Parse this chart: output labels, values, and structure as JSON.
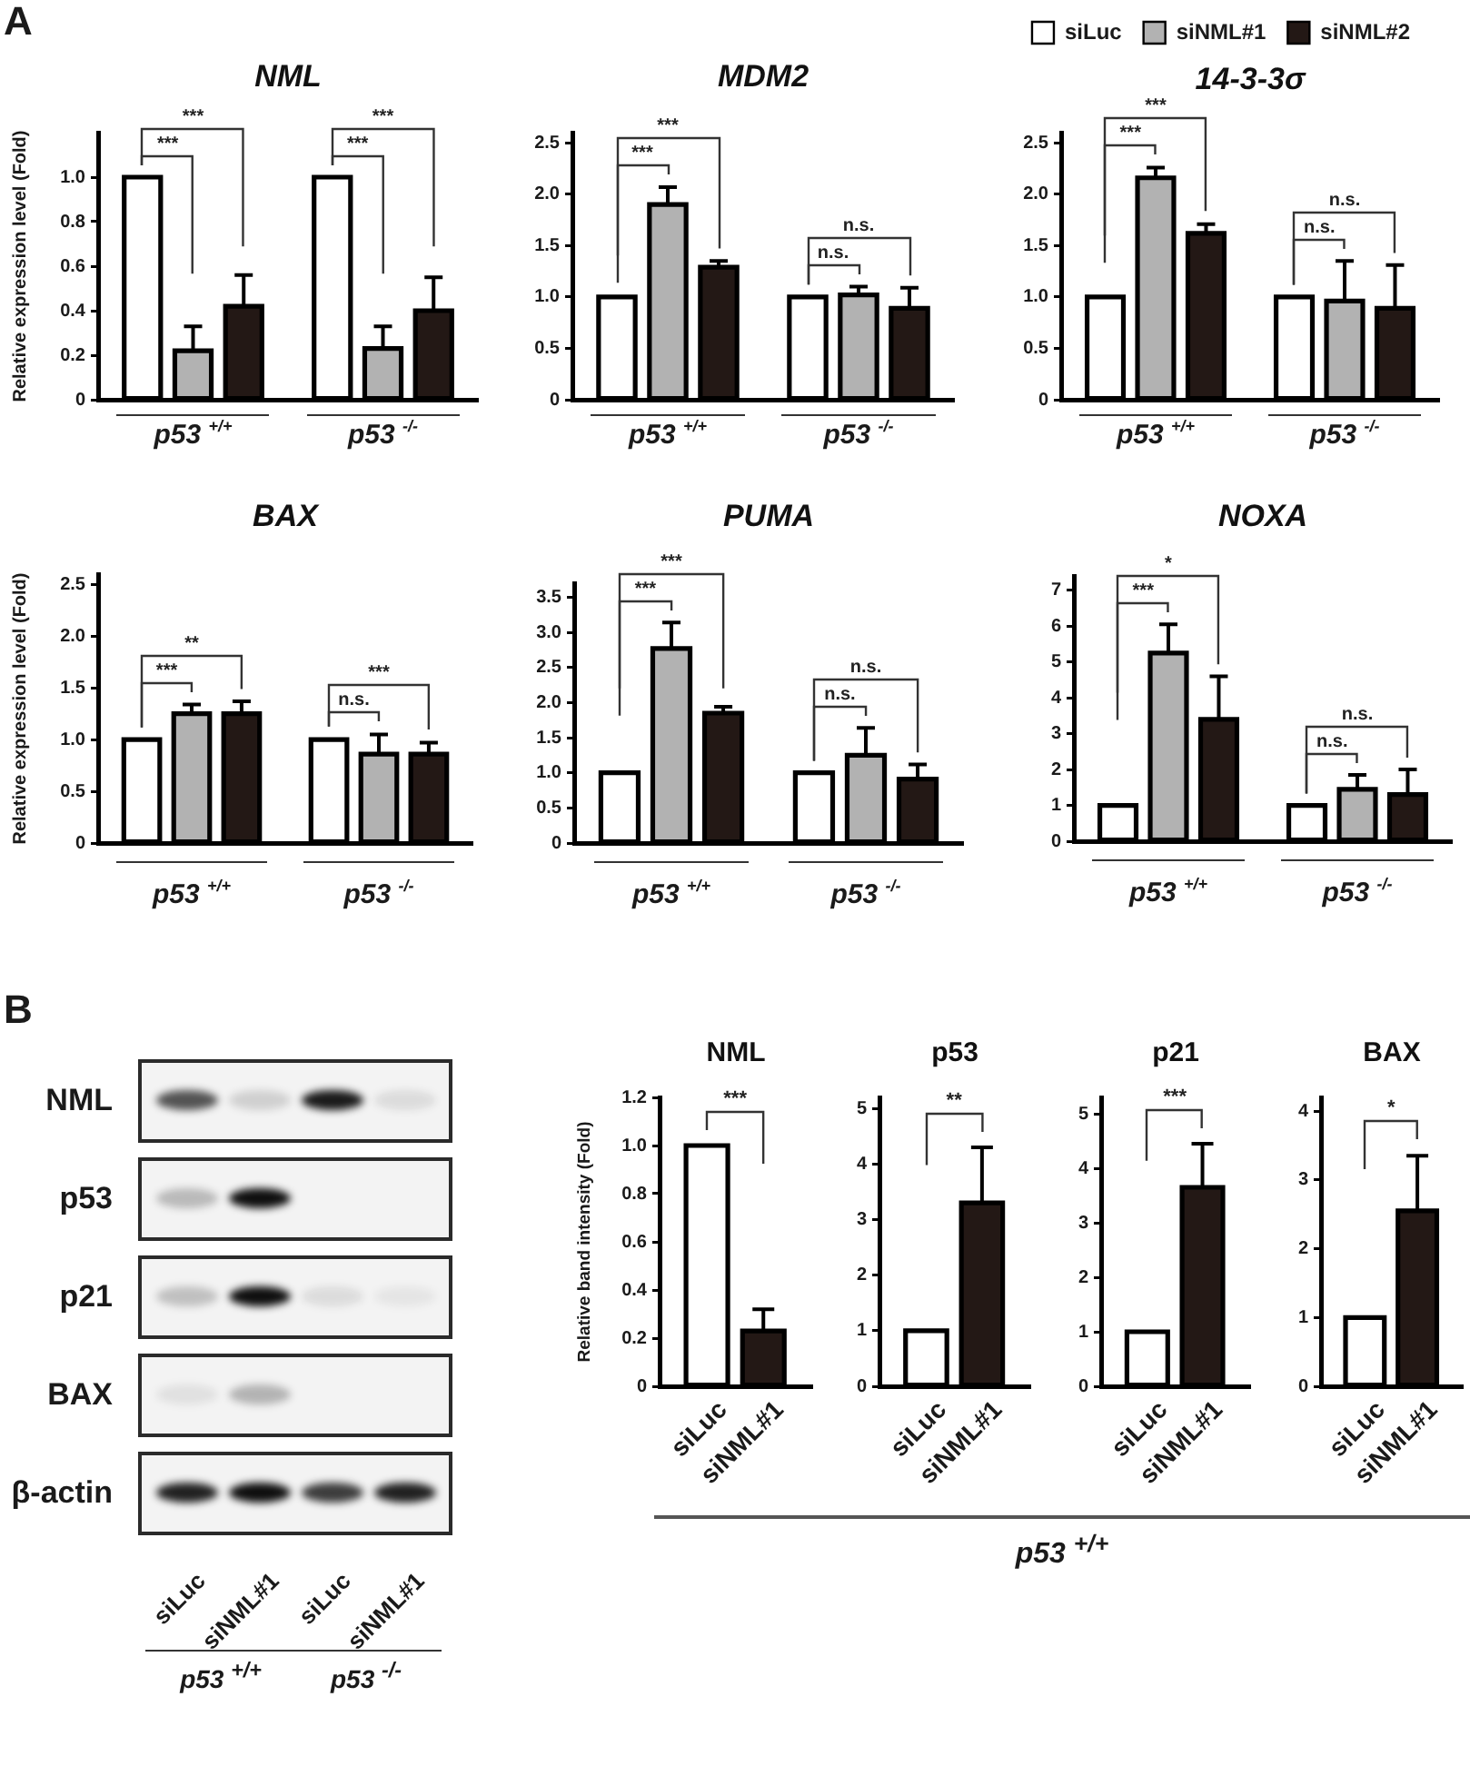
{
  "chart_data": [
    {
      "type": "bar",
      "title": "NML",
      "ylabel": "Relative expression level (Fold)",
      "categories": [
        "p53 $^{+/+}$",
        "p53 $^{-/-}$"
      ],
      "series": [
        {
          "color": "#ffffff",
          "values": [
            1,
            1
          ]
        },
        {
          "color": "#b2b2b2",
          "values": [
            0.22,
            0.23
          ],
          "errors": [
            [
              0.22,
              0.33
            ],
            [
              0.23,
              0.33
            ]
          ]
        },
        {
          "color": "#231815",
          "values": [
            0.42,
            0.4
          ],
          "errors": [
            [
              0.42,
              0.56
            ],
            [
              0.4,
              0.55
            ]
          ]
        }
      ],
      "ylim": [
        0,
        1.2
      ],
      "yticks": [
        0,
        0.2,
        0.4,
        0.6,
        0.8,
        {
          "value": 1,
          "label": "1.0"
        }
      ],
      "annotations": [
        "***",
        "***",
        "***",
        "***",
        "A"
      ]
    },
    {
      "type": "bar",
      "title": "MDM2",
      "categories": [
        "p53 $^{+/+}$",
        "p53 $^{-/-}$"
      ],
      "series": [
        {
          "color": "#ffffff",
          "values": [
            1,
            1
          ]
        },
        {
          "color": "#b2b2b2",
          "values": [
            1.9,
            1.02
          ],
          "errors": [
            [
              1.9,
              2.07
            ],
            [
              1.02,
              1.1
            ]
          ]
        },
        {
          "color": "#231815",
          "values": [
            1.29,
            0.89
          ],
          "errors": [
            [
              1.29,
              1.35
            ],
            [
              0.89,
              1.09
            ]
          ]
        }
      ],
      "ylim": [
        0,
        2.6
      ],
      "yticks": [
        0,
        0.5,
        {
          "value": 1,
          "label": "1.0"
        },
        1.5,
        {
          "value": 2,
          "label": "2.0"
        },
        2.5
      ],
      "annotations": [
        "***",
        "***",
        "n.s.",
        "n.s."
      ]
    },
    {
      "type": "bar",
      "title": "14-3-3σ",
      "legend": "top",
      "categories": [
        "p53 $^{+/+}$",
        "p53 $^{-/-}$"
      ],
      "series": [
        {
          "name": "siLuc",
          "color": "#ffffff",
          "values": [
            1,
            1
          ]
        },
        {
          "name": "siNML#1",
          "color": "#b2b2b2",
          "values": [
            2.16,
            0.96
          ],
          "errors": [
            [
              2.16,
              2.26
            ],
            [
              0.96,
              1.35
            ]
          ]
        },
        {
          "name": "siNML#2",
          "color": "#231815",
          "values": [
            1.62,
            0.89
          ],
          "errors": [
            [
              1.62,
              1.71
            ],
            [
              0.89,
              1.31
            ]
          ]
        }
      ],
      "ylim": [
        0,
        2.6
      ],
      "yticks": [
        0,
        0.5,
        {
          "value": 1,
          "label": "1.0"
        },
        1.5,
        {
          "value": 2,
          "label": "2.0"
        },
        2.5
      ],
      "annotations": [
        "***",
        "***",
        "n.s.",
        "n.s."
      ]
    },
    {
      "type": "bar",
      "title": "BAX",
      "ylabel": "Relative expression level (Fold)",
      "categories": [
        "p53 $^{+/+}$",
        "p53 $^{-/-}$"
      ],
      "series": [
        {
          "color": "#ffffff",
          "values": [
            1,
            1
          ]
        },
        {
          "color": "#b2b2b2",
          "values": [
            1.25,
            0.86
          ],
          "errors": [
            [
              1.25,
              1.34
            ],
            [
              0.86,
              1.05
            ]
          ]
        },
        {
          "color": "#231815",
          "values": [
            1.25,
            0.86
          ],
          "errors": [
            [
              1.25,
              1.37
            ],
            [
              0.86,
              0.97
            ]
          ]
        }
      ],
      "ylim": [
        0,
        2.6
      ],
      "yticks": [
        0,
        0.5,
        {
          "value": 1,
          "label": "1.0"
        },
        1.5,
        {
          "value": 2,
          "label": "2.0"
        },
        2.5
      ],
      "annotations": [
        "***",
        "**",
        "n.s.",
        "***"
      ]
    },
    {
      "type": "bar",
      "title": "PUMA",
      "categories": [
        "p53 $^{+/+}$",
        "p53 $^{-/-}$"
      ],
      "series": [
        {
          "color": "#ffffff",
          "values": [
            1,
            1
          ]
        },
        {
          "color": "#b2b2b2",
          "values": [
            2.77,
            1.25
          ],
          "errors": [
            [
              2.77,
              3.14
            ],
            [
              1.25,
              1.64
            ]
          ]
        },
        {
          "color": "#231815",
          "values": [
            1.85,
            0.91
          ],
          "errors": [
            [
              1.85,
              1.94
            ],
            [
              0.91,
              1.12
            ]
          ]
        }
      ],
      "ylim": [
        0,
        3.7
      ],
      "yticks": [
        0,
        0.5,
        {
          "value": 1,
          "label": "1.0"
        },
        1.5,
        {
          "value": 2,
          "label": "2.0"
        },
        2.5,
        {
          "value": 3,
          "label": "3.0"
        },
        3.5
      ],
      "annotations": [
        "***",
        "***",
        "n.s.",
        "n.s."
      ]
    },
    {
      "type": "bar",
      "title": "NOXA",
      "categories": [
        "p53 $^{+/+}$",
        "p53 $^{-/-}$"
      ],
      "series": [
        {
          "color": "#ffffff",
          "values": [
            1,
            1
          ]
        },
        {
          "color": "#b2b2b2",
          "values": [
            5.25,
            1.45
          ],
          "errors": [
            [
              5.25,
              6.05
            ],
            [
              1.45,
              1.85
            ]
          ]
        },
        {
          "color": "#231815",
          "values": [
            3.4,
            1.3
          ],
          "errors": [
            [
              3.4,
              4.6
            ],
            [
              1.3,
              2
            ]
          ]
        }
      ],
      "ylim": [
        0,
        7.4
      ],
      "yticks": [
        0,
        1,
        2,
        3,
        4,
        5,
        6,
        7
      ],
      "annotations": [
        "***",
        "*",
        "n.s.",
        "n.s."
      ]
    },
    {
      "type": "other",
      "categories": [
        "siLuc",
        "siNML#1",
        "siLuc",
        "siNML#1"
      ],
      "y_categories": [
        "NML",
        "p53",
        "p21",
        "BAX",
        "β-actin"
      ],
      "annotations": [
        "p53 $^{+/+}$",
        "p53 $^{-/-}$",
        "B"
      ]
    },
    {
      "type": "bar",
      "title": "NML",
      "ylabel": "Relative band intensity (Fold)",
      "categories": [
        "siLuc",
        "siNML#1"
      ],
      "values": [
        1,
        0.23
      ],
      "colors": [
        "#ffffff",
        "#231815"
      ],
      "errors": [
        null,
        [
          0.23,
          0.32
        ]
      ],
      "ylim": [
        0,
        1.2
      ],
      "yticks": [
        0,
        0.2,
        0.4,
        0.6,
        0.8,
        {
          "value": 1,
          "label": "1.0"
        },
        1.2
      ],
      "annotations": [
        "***",
        "p53 $^{+/+}$"
      ]
    },
    {
      "type": "bar",
      "title": "p53",
      "categories": [
        "siLuc",
        "siNML#1"
      ],
      "values": [
        1,
        3.3
      ],
      "colors": [
        "#ffffff",
        "#231815"
      ],
      "errors": [
        null,
        [
          3.3,
          4.3
        ]
      ],
      "ylim": [
        0,
        5.2
      ],
      "yticks": [
        0,
        1,
        2,
        3,
        4,
        5
      ],
      "annotations": [
        "**"
      ]
    },
    {
      "type": "bar",
      "title": "p21",
      "categories": [
        "siLuc",
        "siNML#1"
      ],
      "values": [
        1,
        3.65
      ],
      "colors": [
        "#ffffff",
        "#231815"
      ],
      "errors": [
        null,
        [
          3.65,
          4.45
        ]
      ],
      "ylim": [
        0,
        5.3
      ],
      "yticks": [
        0,
        1,
        2,
        3,
        4,
        5
      ],
      "annotations": [
        "***"
      ]
    },
    {
      "type": "bar",
      "title": "BAX",
      "categories": [
        "siLuc",
        "siNML#1"
      ],
      "values": [
        1,
        2.55
      ],
      "colors": [
        "#ffffff",
        "#231815"
      ],
      "errors": [
        null,
        [
          2.55,
          3.35
        ]
      ],
      "ylim": [
        0,
        4.2
      ],
      "yticks": [
        0,
        1,
        2,
        3,
        4
      ],
      "annotations": [
        "*"
      ]
    }
  ]
}
